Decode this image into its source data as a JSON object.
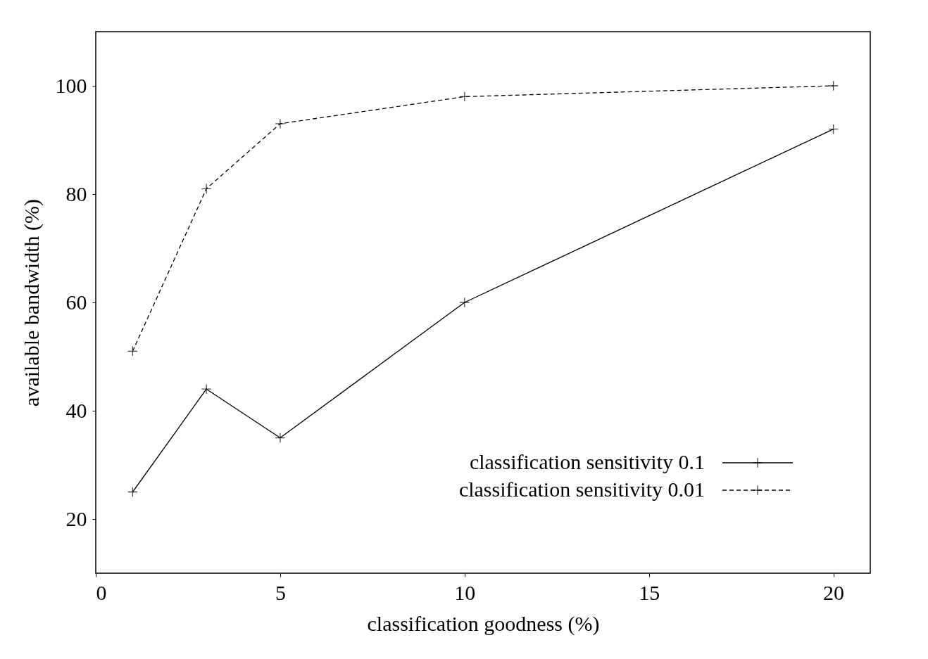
{
  "chart_data": {
    "type": "line",
    "xlabel": "classification goodness (%)",
    "ylabel": "available bandwidth (%)",
    "x": [
      1,
      3,
      5,
      10,
      20
    ],
    "series": [
      {
        "name": "classification sensitivity 0.1",
        "color": "#000000",
        "values": [
          25,
          44,
          35,
          60,
          92
        ],
        "marker": "cross",
        "line_style": "solid"
      },
      {
        "name": "classification sensitivity 0.01",
        "color": "#000000",
        "values": [
          51,
          81,
          93,
          98,
          100
        ],
        "marker": "cross",
        "line_style": "dashed"
      }
    ],
    "xlim": [
      0,
      21
    ],
    "xticks": [
      0,
      5,
      10,
      15,
      20
    ],
    "ylim": [
      10,
      110
    ],
    "yticks": [
      20,
      40,
      60,
      80,
      100
    ],
    "grid": false,
    "legend": "bottom right"
  }
}
